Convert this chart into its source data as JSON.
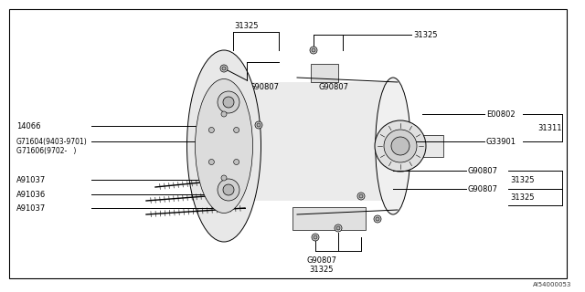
{
  "bg_color": "#ffffff",
  "line_color": "#000000",
  "text_color": "#000000",
  "light_gray": "#cccccc",
  "mid_gray": "#aaaaaa",
  "watermark": "AI54000053",
  "font_size": 6.0,
  "small_font_size": 5.5,
  "labels": {
    "31325_top": "31325",
    "G90807_top_left": "G90807",
    "G90807_top_center": "G90807",
    "31325_top_right": "31325",
    "E00802": "E00802",
    "31311": "31311",
    "G33901": "G33901",
    "14066": "14066",
    "G71604": "G71604(9403-9701)",
    "G71606": "G71606(9702-   )",
    "G90807_mid_right": "G90807",
    "31325_mid_right": "31325",
    "G90807_lower_right": "G90807",
    "31325_lower_right": "31325",
    "A91037_upper": "A91037",
    "A91036": "A91036",
    "A91037_lower": "A91037",
    "G90807_bottom": "G90807",
    "31325_bottom": "31325"
  },
  "border": [
    10,
    10,
    620,
    305
  ]
}
